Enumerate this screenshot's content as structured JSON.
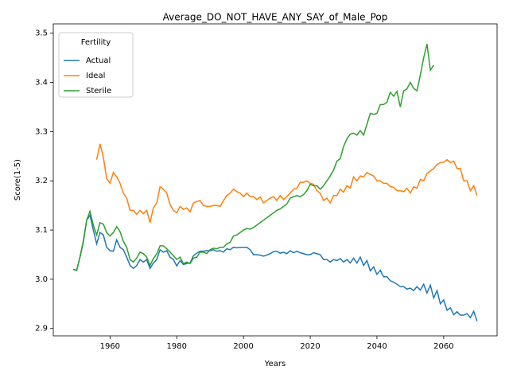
{
  "chart_data": {
    "type": "line",
    "title": "Average_DO_NOT_HAVE_ANY_SAY_of_Male_Pop",
    "xlabel": "Years",
    "ylabel": "Score(1-5)",
    "legend_title": "Fertility",
    "legend": "upper left",
    "x": [
      1949,
      1950,
      1951,
      1952,
      1953,
      1954,
      1955,
      1956,
      1957,
      1958,
      1959,
      1960,
      1961,
      1962,
      1963,
      1964,
      1965,
      1966,
      1967,
      1968,
      1969,
      1970,
      1971,
      1972,
      1973,
      1974,
      1975,
      1976,
      1977,
      1978,
      1979,
      1980,
      1981,
      1982,
      1983,
      1984,
      1985,
      1986,
      1987,
      1988,
      1989,
      1990,
      1991,
      1992,
      1993,
      1994,
      1995,
      1996,
      1997,
      1998,
      1999,
      2000,
      2001,
      2002,
      2003,
      2004,
      2005,
      2006,
      2007,
      2008,
      2009,
      2010,
      2011,
      2012,
      2013,
      2014,
      2015,
      2016,
      2017,
      2018,
      2019,
      2020,
      2021,
      2022,
      2023,
      2024,
      2025,
      2026,
      2027,
      2028,
      2029,
      2030,
      2031,
      2032,
      2033,
      2034,
      2035,
      2036,
      2037,
      2038,
      2039,
      2040,
      2041,
      2042,
      2043,
      2044,
      2045,
      2046,
      2047,
      2048,
      2049,
      2050,
      2051,
      2052,
      2053,
      2054,
      2055,
      2056,
      2057,
      2058,
      2059,
      2060,
      2061,
      2062,
      2063,
      2064,
      2065,
      2066,
      2067,
      2068,
      2069,
      2070
    ],
    "series": [
      {
        "name": "Actual",
        "color": "#1f77b4",
        "values": [
          3.02,
          3.018,
          3.045,
          3.075,
          3.12,
          3.13,
          3.1,
          3.072,
          3.095,
          3.09,
          3.065,
          3.058,
          3.057,
          3.08,
          3.065,
          3.06,
          3.045,
          3.028,
          3.022,
          3.028,
          3.04,
          3.035,
          3.04,
          3.022,
          3.033,
          3.04,
          3.06,
          3.055,
          3.058,
          3.045,
          3.04,
          3.027,
          3.038,
          3.03,
          3.032,
          3.033,
          3.048,
          3.053,
          3.057,
          3.057,
          3.058,
          3.058,
          3.06,
          3.057,
          3.058,
          3.055,
          3.062,
          3.06,
          3.065,
          3.064,
          3.065,
          3.065,
          3.065,
          3.06,
          3.05,
          3.05,
          3.049,
          3.047,
          3.049,
          3.052,
          3.056,
          3.057,
          3.053,
          3.055,
          3.052,
          3.058,
          3.054,
          3.057,
          3.054,
          3.052,
          3.05,
          3.05,
          3.054,
          3.052,
          3.05,
          3.04,
          3.04,
          3.035,
          3.04,
          3.038,
          3.042,
          3.035,
          3.04,
          3.033,
          3.043,
          3.033,
          3.045,
          3.028,
          3.038,
          3.017,
          3.025,
          3.01,
          3.018,
          3.005,
          3.005,
          2.997,
          2.994,
          2.99,
          2.985,
          2.985,
          2.98,
          2.982,
          2.977,
          2.985,
          2.978,
          2.99,
          2.972,
          2.988,
          2.962,
          2.977,
          2.95,
          2.958,
          2.937,
          2.942,
          2.928,
          2.934,
          2.927,
          2.927,
          2.93,
          2.922,
          2.935,
          2.915
        ]
      },
      {
        "name": "Ideal",
        "color": "#ff7f0e",
        "values": [
          null,
          null,
          null,
          null,
          null,
          null,
          null,
          3.243,
          3.275,
          3.248,
          3.205,
          3.195,
          3.217,
          3.208,
          3.195,
          3.175,
          3.165,
          3.14,
          3.14,
          3.132,
          3.14,
          3.133,
          3.14,
          3.115,
          3.145,
          3.155,
          3.188,
          3.183,
          3.175,
          3.152,
          3.14,
          3.135,
          3.148,
          3.142,
          3.145,
          3.137,
          3.155,
          3.158,
          3.16,
          3.15,
          3.148,
          3.148,
          3.15,
          3.15,
          3.148,
          3.16,
          3.17,
          3.175,
          3.183,
          3.178,
          3.175,
          3.168,
          3.175,
          3.168,
          3.168,
          3.162,
          3.167,
          3.155,
          3.16,
          3.165,
          3.168,
          3.16,
          3.17,
          3.162,
          3.168,
          3.175,
          3.183,
          3.185,
          3.197,
          3.197,
          3.2,
          3.195,
          3.193,
          3.18,
          3.175,
          3.16,
          3.165,
          3.155,
          3.17,
          3.17,
          3.183,
          3.177,
          3.19,
          3.185,
          3.208,
          3.2,
          3.21,
          3.208,
          3.217,
          3.213,
          3.21,
          3.2,
          3.2,
          3.195,
          3.195,
          3.188,
          3.187,
          3.18,
          3.18,
          3.178,
          3.185,
          3.175,
          3.188,
          3.185,
          3.203,
          3.2,
          3.215,
          3.22,
          3.225,
          3.233,
          3.237,
          3.238,
          3.243,
          3.237,
          3.24,
          3.225,
          3.225,
          3.2,
          3.2,
          3.18,
          3.19,
          3.17
        ]
      },
      {
        "name": "Sterile",
        "color": "#2ca02c",
        "values": [
          3.02,
          3.018,
          3.045,
          3.078,
          3.12,
          3.138,
          3.11,
          3.09,
          3.115,
          3.112,
          3.095,
          3.088,
          3.095,
          3.107,
          3.097,
          3.077,
          3.065,
          3.04,
          3.035,
          3.043,
          3.055,
          3.052,
          3.045,
          3.028,
          3.042,
          3.052,
          3.068,
          3.068,
          3.062,
          3.055,
          3.048,
          3.04,
          3.045,
          3.032,
          3.035,
          3.032,
          3.043,
          3.045,
          3.055,
          3.055,
          3.052,
          3.06,
          3.063,
          3.062,
          3.065,
          3.065,
          3.072,
          3.075,
          3.088,
          3.09,
          3.095,
          3.1,
          3.103,
          3.102,
          3.105,
          3.11,
          3.115,
          3.12,
          3.125,
          3.13,
          3.135,
          3.14,
          3.143,
          3.148,
          3.153,
          3.165,
          3.168,
          3.17,
          3.168,
          3.172,
          3.18,
          3.193,
          3.19,
          3.19,
          3.183,
          3.19,
          3.2,
          3.21,
          3.222,
          3.24,
          3.245,
          3.27,
          3.285,
          3.295,
          3.297,
          3.293,
          3.302,
          3.293,
          3.315,
          3.337,
          3.335,
          3.337,
          3.355,
          3.355,
          3.36,
          3.38,
          3.372,
          3.382,
          3.35,
          3.383,
          3.387,
          3.4,
          3.388,
          3.383,
          3.415,
          3.45,
          3.478,
          3.425,
          3.435,
          null,
          null,
          null,
          null,
          null,
          null,
          null,
          null,
          null,
          null,
          null,
          null,
          null
        ]
      }
    ],
    "xlim": [
      1943,
      2076
    ],
    "xticks": [
      1960,
      1980,
      2000,
      2020,
      2040,
      2060
    ],
    "ylim": [
      2.885,
      3.519
    ],
    "yticks": [
      2.9,
      {
        "value": 3,
        "label": "3.0"
      },
      3.1,
      3.2,
      3.3,
      3.4,
      3.5
    ]
  }
}
